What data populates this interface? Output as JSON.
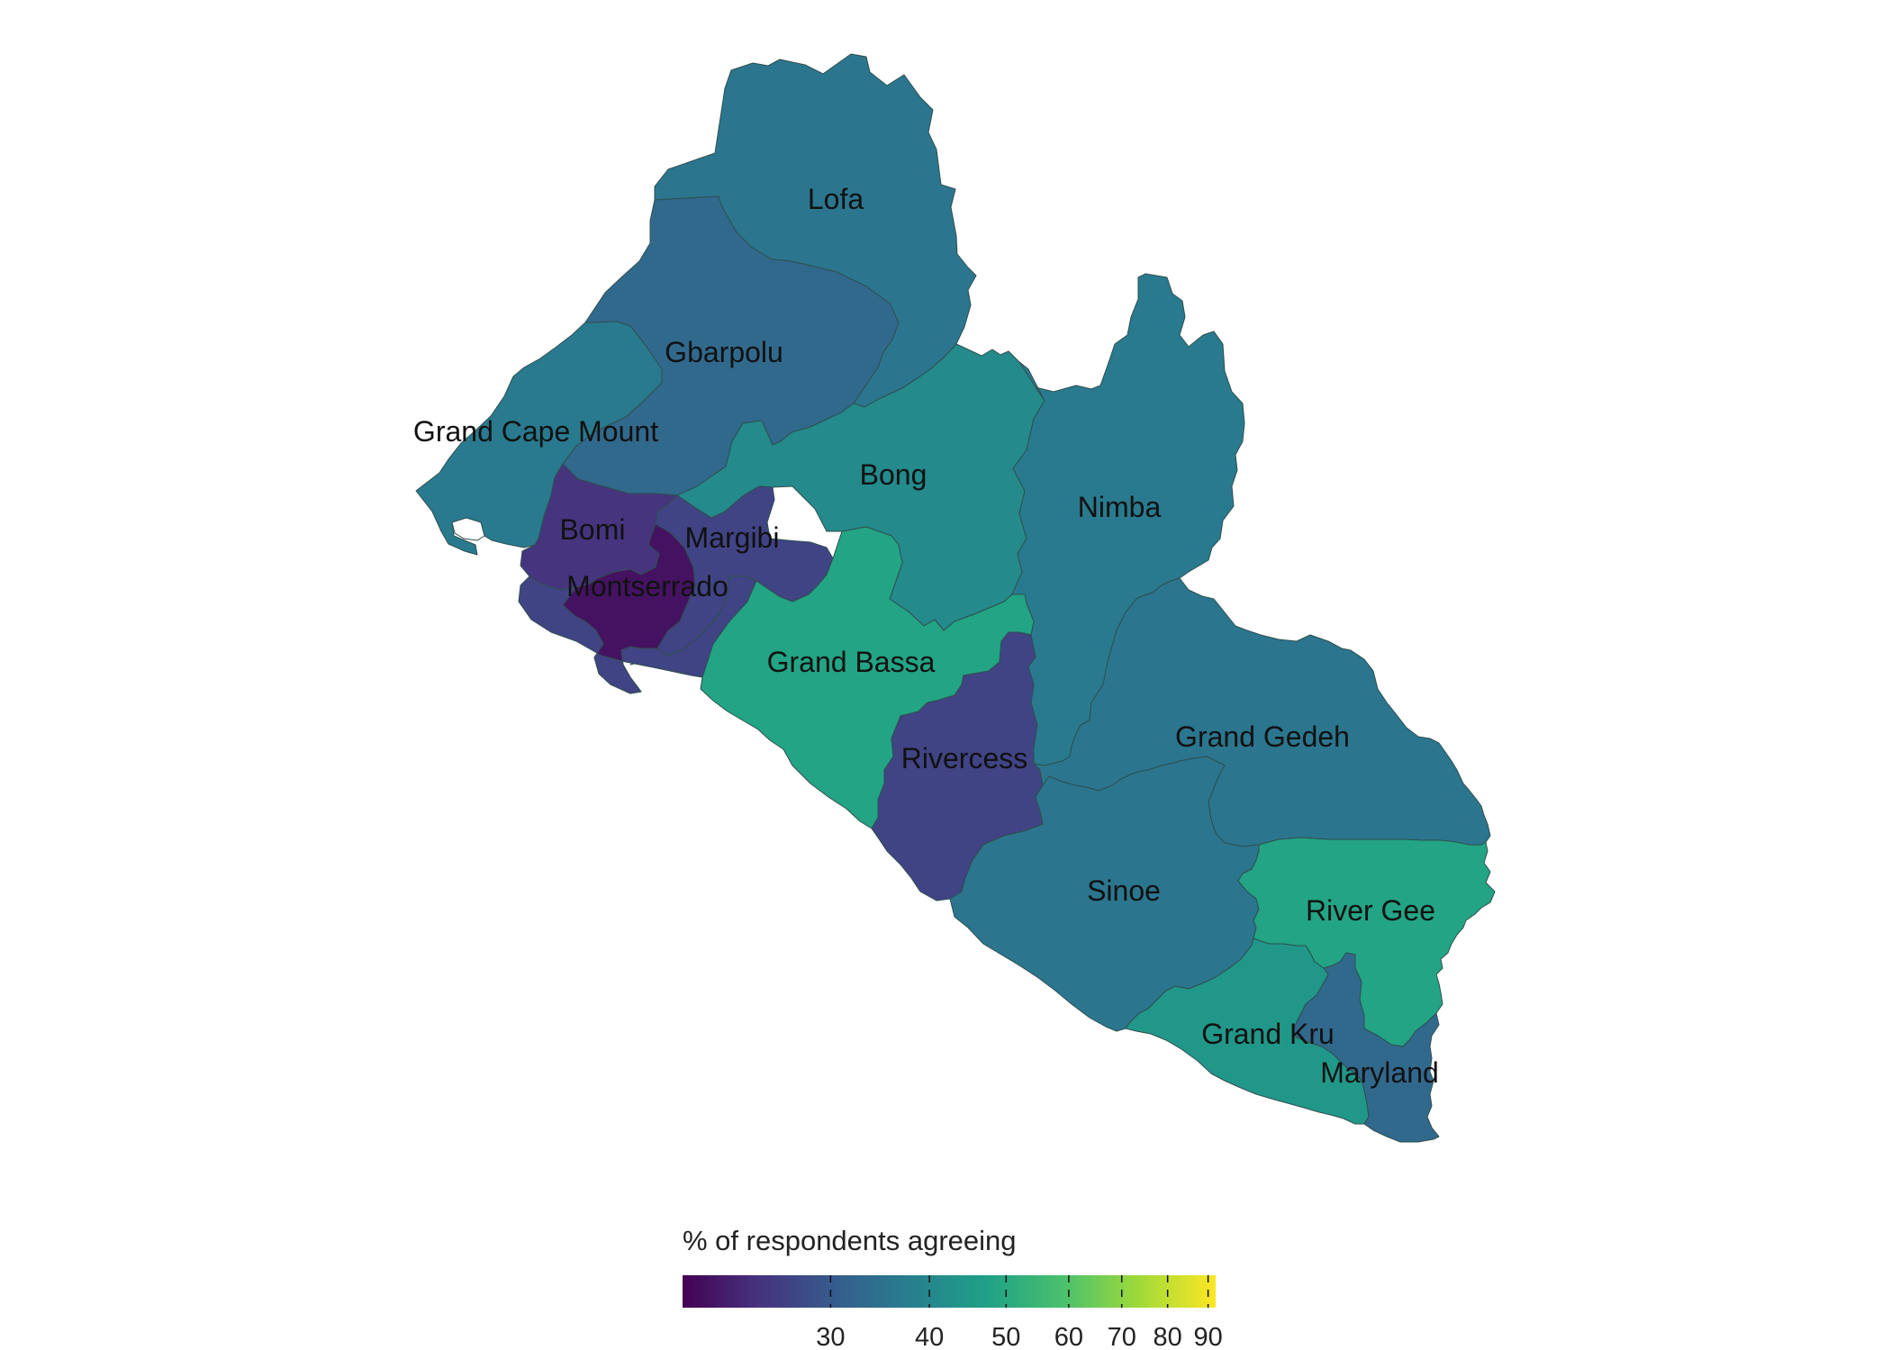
{
  "colors": {
    "border": "#2f4f4f",
    "background": "#ffffff",
    "scale": [
      "#440154",
      "#46337e",
      "#365c8d",
      "#277f8e",
      "#1fa187",
      "#4ac16d",
      "#a0da39",
      "#fde725"
    ]
  },
  "legend": {
    "title": "% of respondents agreeing",
    "min": 19.5,
    "max": 92,
    "ticks": [
      {
        "value": 30,
        "label": "30"
      },
      {
        "value": 40,
        "label": "40"
      },
      {
        "value": 50,
        "label": "50"
      },
      {
        "value": 60,
        "label": "60"
      },
      {
        "value": 70,
        "label": "70"
      },
      {
        "value": 80,
        "label": "80"
      },
      {
        "value": 90,
        "label": "90"
      }
    ]
  },
  "counties": [
    {
      "id": "lofa",
      "name": "Lofa",
      "value": 48
    },
    {
      "id": "gbarpolu",
      "name": "Gbarpolu",
      "value": 44
    },
    {
      "id": "grand-cape-mount",
      "name": "Grand Cape Mount",
      "value": 49
    },
    {
      "id": "bong",
      "name": "Bong",
      "value": 54
    },
    {
      "id": "nimba",
      "name": "Nimba",
      "value": 49
    },
    {
      "id": "bomi",
      "name": "Bomi",
      "value": 30
    },
    {
      "id": "margibi",
      "name": "Margibi",
      "value": 34
    },
    {
      "id": "montserrado",
      "name": "Montserrado",
      "value": 23
    },
    {
      "id": "grand-bassa",
      "name": "Grand Bassa",
      "value": 62
    },
    {
      "id": "rivercess",
      "name": "Rivercess",
      "value": 34
    },
    {
      "id": "grand-gedeh",
      "name": "Grand Gedeh",
      "value": 48
    },
    {
      "id": "sinoe",
      "name": "Sinoe",
      "value": 48
    },
    {
      "id": "river-gee",
      "name": "River Gee",
      "value": 62
    },
    {
      "id": "grand-kru",
      "name": "Grand Kru",
      "value": 58
    },
    {
      "id": "maryland",
      "name": "Maryland",
      "value": 44
    }
  ]
}
